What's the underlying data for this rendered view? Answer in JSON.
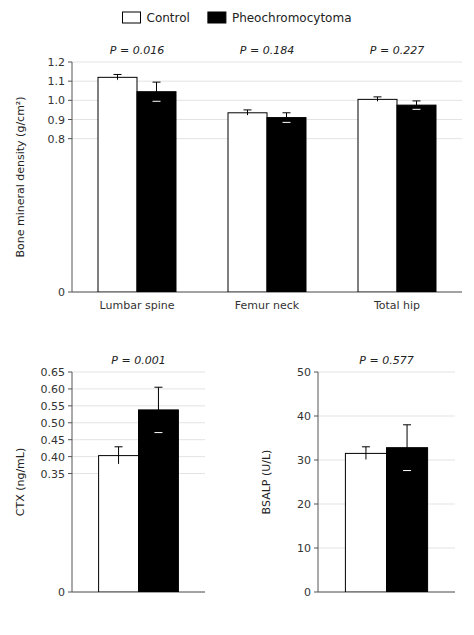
{
  "chart_data": [
    {
      "type": "bar",
      "ylabel": "Bone mineral density (g/cm²)",
      "categories": [
        "Lumbar spine",
        "Femur neck",
        "Total hip"
      ],
      "series": [
        {
          "name": "Control",
          "color": "white",
          "values": [
            1.12,
            0.935,
            1.005
          ],
          "errors": [
            0.015,
            0.015,
            0.013
          ]
        },
        {
          "name": "Pheochromocytoma",
          "color": "black",
          "values": [
            1.045,
            0.91,
            0.975
          ],
          "errors": [
            0.05,
            0.025,
            0.022
          ]
        }
      ],
      "annotations": [
        "P = 0.016",
        "P = 0.184",
        "P = 0.227"
      ],
      "ylim": [
        0,
        1.2
      ],
      "yticks": [
        0,
        0.8,
        0.9,
        {
          "value": 1,
          "label": "1.0"
        },
        1.1,
        1.2
      ],
      "legend": "top"
    },
    {
      "type": "bar",
      "ylabel": "CTX (ng/mL)",
      "categories": [
        null
      ],
      "series": [
        {
          "name": "Control",
          "color": "white",
          "values": [
            0.403
          ],
          "errors": [
            0.026
          ]
        },
        {
          "name": "Pheochromocytoma",
          "color": "black",
          "values": [
            0.538
          ],
          "errors": [
            0.067
          ]
        }
      ],
      "annotations": [
        "P = 0.001"
      ],
      "ylim": [
        0,
        0.65
      ],
      "yticks": [
        0,
        0.35,
        {
          "value": 0.4,
          "label": "0.40"
        },
        0.45,
        {
          "value": 0.5,
          "label": "0.50"
        },
        0.55,
        {
          "value": 0.6,
          "label": "0.60"
        },
        0.65
      ]
    },
    {
      "type": "bar",
      "ylabel": "BSALP (U/L)",
      "categories": [
        null
      ],
      "series": [
        {
          "name": "Control",
          "color": "white",
          "values": [
            31.5
          ],
          "errors": [
            1.5
          ]
        },
        {
          "name": "Pheochromocytoma",
          "color": "black",
          "values": [
            32.8
          ],
          "errors": [
            5.2
          ]
        }
      ],
      "annotations": [
        "P = 0.577"
      ],
      "ylim": [
        0,
        50
      ],
      "yticks": [
        0,
        10,
        20,
        30,
        40,
        50
      ]
    }
  ]
}
